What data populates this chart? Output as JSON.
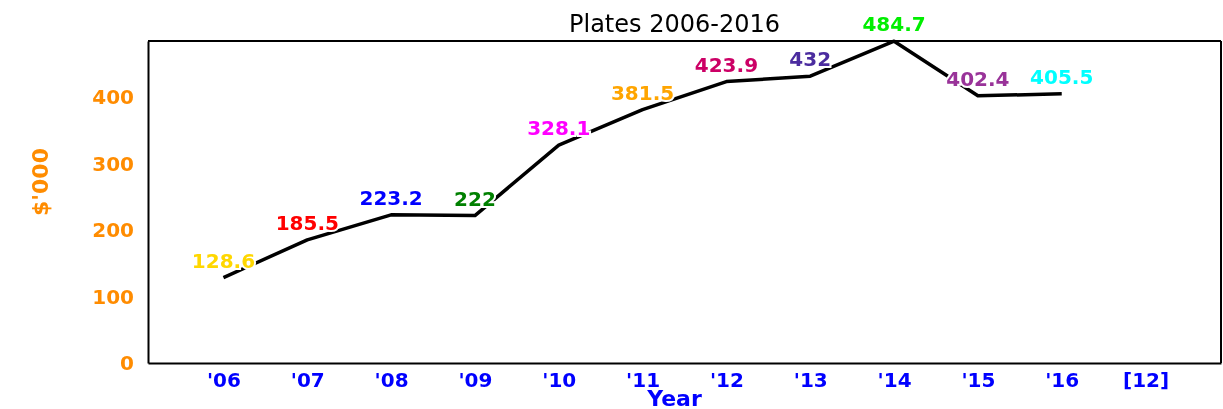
{
  "chart_data": {
    "type": "line",
    "title": "Plates 2006-2016",
    "xlabel": "Year",
    "ylabel": "$'000",
    "categories": [
      "'06",
      "'07",
      "'08",
      "'09",
      "'10",
      "'11",
      "'12",
      "'13",
      "'14",
      "'15",
      "'16",
      "[12]"
    ],
    "series": [
      {
        "color": "#000000",
        "values": [
          128.6,
          185.5,
          223.2,
          222,
          328.1,
          381.5,
          423.9,
          432,
          484.7,
          402.4,
          405.5,
          null
        ],
        "colors": [
          "#ffd700",
          "#ff0000",
          "#0000ff",
          "#008000",
          "#ff00ff",
          "#ffa500",
          "#cc0066",
          "#4b2c9f",
          "#00ee00",
          "#993399",
          "#00ffff",
          null
        ]
      }
    ],
    "ylim": [
      0,
      485
    ],
    "yticks": [
      0,
      100,
      200,
      300,
      400
    ],
    "data_labels": true,
    "marker": "none",
    "grid": false
  }
}
